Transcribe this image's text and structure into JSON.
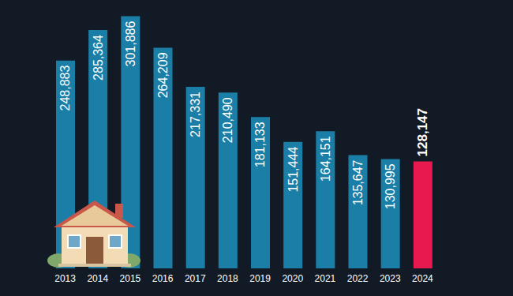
{
  "chart_data": {
    "type": "bar",
    "categories": [
      "2013",
      "2014",
      "2015",
      "2016",
      "2017",
      "2018",
      "2019",
      "2020",
      "2021",
      "2022",
      "2023",
      "2024"
    ],
    "values": [
      248883,
      285364,
      301886,
      264209,
      217331,
      210490,
      181133,
      151444,
      164151,
      135647,
      130995,
      128147
    ],
    "value_labels": [
      "248,883",
      "285,364",
      "301,886",
      "264,209",
      "217,331",
      "210,490",
      "181,133",
      "151,444",
      "164,151",
      "135,647",
      "130,995",
      "128,147"
    ],
    "colors": [
      "#1a7ea6",
      "#1a7ea6",
      "#1a7ea6",
      "#1a7ea6",
      "#1a7ea6",
      "#1a7ea6",
      "#1a7ea6",
      "#1a7ea6",
      "#1a7ea6",
      "#1a7ea6",
      "#1a7ea6",
      "#e8194f"
    ],
    "ylim": [
      0,
      310000
    ],
    "data_labels": true,
    "tick_labels": "x",
    "grid": false
  }
}
